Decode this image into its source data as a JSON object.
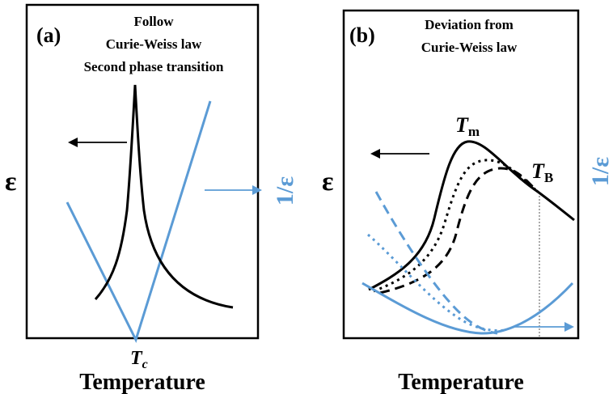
{
  "panel_a": {
    "tag": "(a)",
    "title_lines": [
      "Follow",
      "Curie-Weiss law",
      "Second phase transition"
    ],
    "left_axis_symbol": "ε",
    "right_axis_symbol": "1/ε",
    "tc_label_main": "T",
    "tc_label_sub": "c",
    "xlabel": "Temperature"
  },
  "panel_b": {
    "tag": "(b)",
    "title_lines": [
      "Deviation from",
      "Curie-Weiss law"
    ],
    "left_axis_symbol": "ε",
    "right_axis_symbol": "1/ε",
    "tm_label_main": "T",
    "tm_label_sub": "m",
    "tb_label_main": "T",
    "tb_label_sub": "B",
    "xlabel": "Temperature"
  },
  "colors": {
    "epsilon_curve": "#000000",
    "inverse_epsilon_curve": "#5b9bd5",
    "frame": "#000000"
  }
}
